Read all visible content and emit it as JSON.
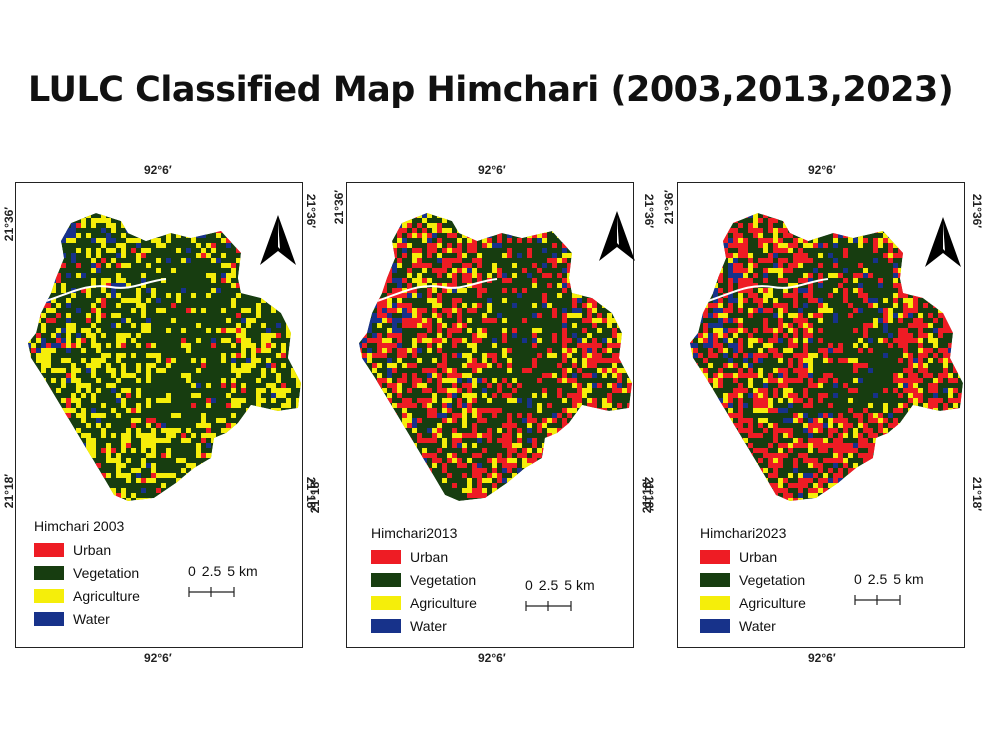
{
  "title": "LULC Classified Map Himchari (2003,2013,2023)",
  "classes": [
    {
      "label": "Urban",
      "color": "#ee1c24"
    },
    {
      "label": "Vegetation",
      "color": "#173d10"
    },
    {
      "label": "Agriculture",
      "color": "#f5ee0a"
    },
    {
      "label": "Water",
      "color": "#17328a"
    }
  ],
  "coords": {
    "lon": "92°6′",
    "lat_top": "21°36′",
    "lat_bottom": "21°18′"
  },
  "scale": {
    "labels": [
      "0",
      "2.5",
      "5 km"
    ]
  },
  "north_icon": "north-arrow-icon",
  "maps": [
    {
      "legend_title": "Himchari 2003",
      "year": 2003
    },
    {
      "legend_title": "Himchari2013",
      "year": 2013
    },
    {
      "legend_title": "Himchari2023",
      "year": 2023
    }
  ]
}
